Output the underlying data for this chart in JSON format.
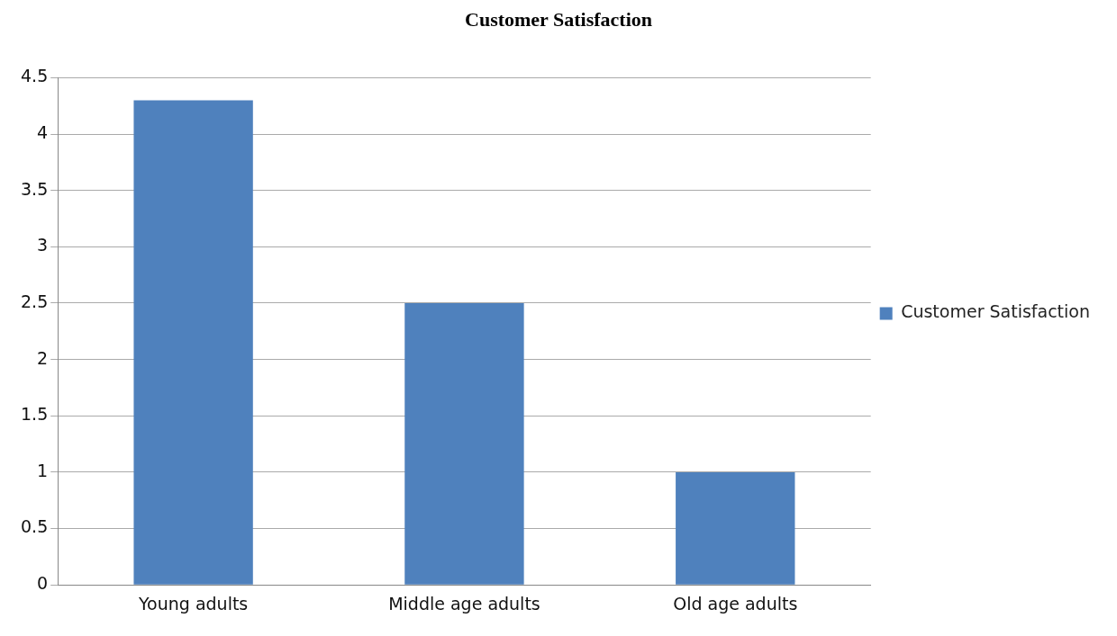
{
  "chart_data": {
    "type": "bar",
    "title": "Customer Satisfaction",
    "categories": [
      "Young adults",
      "Middle age adults",
      "Old age adults"
    ],
    "series": [
      {
        "name": "Customer Satisfaction",
        "color": "#4f81bd",
        "values": [
          4.3,
          2.5,
          1
        ]
      }
    ],
    "ylim": [
      0,
      4.5
    ],
    "yticks": [
      0,
      0.5,
      1,
      1.5,
      2,
      2.5,
      3,
      3.5,
      4,
      4.5
    ],
    "grid": "y",
    "legend": "right"
  }
}
